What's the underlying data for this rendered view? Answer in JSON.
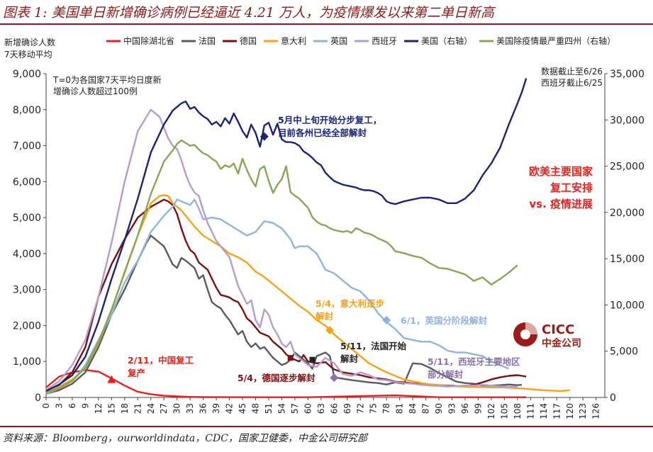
{
  "title": "图表 1:  美国单日新增确诊病例已经逼近 4.21 万人，为疫情爆发以来第二单日新高",
  "source": "资料来源：Bloomberg，ourworldindata，CDC，国家卫健委，中金公司研究部",
  "logo": {
    "text": "CICC",
    "subtext": "中金公司",
    "color": "#9B1B1B"
  },
  "chart_data": {
    "type": "line",
    "ylabel_left": [
      "新增确诊人数",
      "7天移动平均"
    ],
    "ylim_left": [
      0,
      9000
    ],
    "ylim_right": [
      0,
      35000
    ],
    "yticks_left": [
      "0",
      "1,000",
      "2,000",
      "3,000",
      "4,000",
      "5,000",
      "6,000",
      "7,000",
      "8,000",
      "9,000"
    ],
    "yticks_right": [
      "0",
      "5,000",
      "10,000",
      "15,000",
      "20,000",
      "25,000",
      "30,000",
      "35,000"
    ],
    "xticks": [
      0,
      3,
      6,
      9,
      12,
      15,
      18,
      21,
      24,
      27,
      30,
      33,
      36,
      39,
      42,
      45,
      48,
      51,
      54,
      57,
      60,
      63,
      66,
      69,
      72,
      75,
      78,
      81,
      84,
      87,
      90,
      93,
      96,
      99,
      102,
      105,
      108,
      111,
      114,
      117,
      120,
      123,
      126
    ],
    "xlim": [
      0,
      128
    ],
    "note_top_left": [
      "T=0为各国家7天平均日度新",
      "增确诊人数超过100例"
    ],
    "note_top_right": [
      "数据截止至6/26",
      "西班牙截止6/25"
    ],
    "side_note": [
      "欧美主要国家",
      "复工安排",
      "vs. 疫情进展"
    ],
    "series": [
      {
        "name": "中国除湖北省",
        "color": "#E8201C",
        "axis": "left",
        "x": [
          0,
          3,
          6,
          9,
          12,
          15,
          18,
          21,
          24,
          27,
          30,
          33,
          36,
          40,
          60,
          80,
          90,
          110
        ],
        "y": [
          280,
          580,
          700,
          760,
          720,
          530,
          330,
          160,
          90,
          50,
          30,
          15,
          10,
          8,
          6,
          60,
          5,
          5
        ]
      },
      {
        "name": "法国",
        "color": "#5A5A5A",
        "axis": "left",
        "x": [
          0,
          3,
          6,
          9,
          12,
          15,
          18,
          21,
          23,
          24,
          25,
          26,
          27,
          28,
          29,
          30,
          31,
          32,
          33,
          34,
          35,
          36,
          37,
          38,
          39,
          40,
          41,
          42,
          43,
          44,
          45,
          46,
          47,
          48,
          49,
          50,
          51,
          52,
          53,
          54,
          55,
          56,
          57,
          58,
          59,
          60,
          61,
          62,
          63,
          64,
          65,
          66,
          67,
          68,
          70,
          72,
          74,
          76,
          78,
          80,
          82,
          84,
          86,
          88,
          90,
          92,
          94,
          96,
          98,
          100,
          102,
          104,
          106,
          108,
          109
        ],
        "y": [
          100,
          200,
          380,
          700,
          1400,
          2300,
          3000,
          3800,
          4300,
          4500,
          4400,
          4300,
          4200,
          3950,
          3700,
          3600,
          3880,
          3800,
          3700,
          3600,
          3300,
          3400,
          3000,
          2650,
          2550,
          2480,
          2300,
          2150,
          1950,
          1750,
          1850,
          1550,
          1400,
          1500,
          1350,
          1400,
          1250,
          1100,
          1000,
          900,
          950,
          1050,
          1250,
          1150,
          1050,
          950,
          800,
          1150,
          1200,
          1250,
          1150,
          580,
          540,
          520,
          480,
          450,
          420,
          400,
          360,
          420,
          380,
          950,
          930,
          820,
          680,
          560,
          440,
          400,
          380,
          330,
          330,
          340,
          360,
          340,
          350
        ]
      },
      {
        "name": "德国",
        "color": "#7B0F12",
        "axis": "left",
        "x": [
          0,
          3,
          6,
          9,
          12,
          15,
          18,
          21,
          24,
          27,
          28,
          29,
          30,
          31,
          32,
          33,
          34,
          35,
          36,
          37,
          38,
          39,
          40,
          41,
          42,
          43,
          44,
          45,
          46,
          47,
          48,
          49,
          50,
          51,
          52,
          53,
          54,
          55,
          56,
          57,
          58,
          59,
          60,
          62,
          64,
          66,
          68,
          70,
          72,
          74,
          76,
          78,
          80,
          82,
          84,
          86,
          88,
          90,
          92,
          94,
          96,
          98,
          100,
          102,
          104,
          106,
          108,
          110
        ],
        "y": [
          150,
          350,
          700,
          1400,
          2800,
          3700,
          4400,
          5000,
          5300,
          5500,
          5450,
          5350,
          5100,
          4700,
          4350,
          4100,
          4000,
          3750,
          3650,
          3550,
          3300,
          3050,
          2850,
          2820,
          2780,
          2700,
          2650,
          2450,
          2200,
          2100,
          1950,
          1800,
          1750,
          1700,
          1550,
          1450,
          1350,
          1200,
          1100,
          1050,
          1000,
          1180,
          1000,
          950,
          980,
          780,
          700,
          660,
          620,
          560,
          530,
          500,
          440,
          420,
          390,
          370,
          360,
          340,
          330,
          320,
          310,
          350,
          420,
          500,
          560,
          600,
          620,
          580
        ]
      },
      {
        "name": "意大利",
        "color": "#F5A21B",
        "axis": "left",
        "x": [
          0,
          3,
          6,
          9,
          12,
          15,
          18,
          21,
          24,
          26,
          27,
          28,
          29,
          30,
          31,
          32,
          34,
          36,
          38,
          40,
          42,
          44,
          46,
          48,
          50,
          52,
          54,
          56,
          58,
          60,
          62,
          64,
          66,
          68,
          70,
          72,
          74,
          76,
          78,
          80,
          82,
          84,
          86,
          88,
          90,
          92,
          94,
          96,
          98,
          100,
          102,
          104,
          106,
          108,
          110,
          112,
          114,
          116,
          118,
          120
        ],
        "y": [
          150,
          300,
          500,
          800,
          1500,
          2400,
          3500,
          4500,
          5400,
          5600,
          5620,
          5600,
          5400,
          5300,
          5200,
          5050,
          4750,
          4500,
          4350,
          4200,
          4000,
          3900,
          3750,
          3500,
          3350,
          3150,
          2950,
          2750,
          2550,
          2380,
          2150,
          2000,
          1750,
          1550,
          1350,
          1150,
          950,
          820,
          700,
          600,
          500,
          450,
          400,
          360,
          340,
          320,
          310,
          300,
          290,
          290,
          280,
          280,
          270,
          260,
          240,
          220,
          200,
          190,
          180,
          200
        ]
      },
      {
        "name": "英国",
        "color": "#8FB3DD",
        "axis": "left",
        "x": [
          0,
          3,
          6,
          9,
          12,
          15,
          18,
          21,
          24,
          27,
          29,
          30,
          31,
          32,
          33,
          34,
          35,
          36,
          38,
          40,
          42,
          44,
          46,
          48,
          50,
          52,
          54,
          56,
          57,
          58,
          60,
          62,
          64,
          66,
          68,
          70,
          72,
          74,
          76,
          78,
          80,
          82,
          84,
          86,
          88,
          90,
          92,
          94,
          96,
          98,
          100,
          102,
          104,
          106
        ],
        "y": [
          100,
          250,
          450,
          900,
          1600,
          2300,
          3200,
          3800,
          4600,
          5050,
          5300,
          5500,
          5450,
          5400,
          5350,
          5500,
          5250,
          4950,
          5000,
          4950,
          4800,
          4650,
          4500,
          4600,
          4900,
          4850,
          4700,
          4400,
          4150,
          4200,
          4200,
          4000,
          3550,
          3450,
          3250,
          3050,
          2950,
          2700,
          2350,
          2100,
          1900,
          1650,
          1600,
          1550,
          1550,
          1450,
          1300,
          1250,
          1250,
          1200,
          1150,
          1000,
          900,
          800
        ]
      },
      {
        "name": "西班牙",
        "color": "#B59CCC",
        "axis": "left",
        "x": [
          0,
          3,
          6,
          9,
          12,
          15,
          18,
          21,
          24,
          25,
          26,
          27,
          28,
          29,
          30,
          31,
          32,
          33,
          34,
          35,
          36,
          37,
          38,
          39,
          40,
          41,
          42,
          43,
          44,
          45,
          46,
          47,
          48,
          49,
          50,
          51,
          52,
          53,
          54,
          55,
          56,
          57,
          58,
          60,
          62,
          64,
          66,
          68,
          70,
          72,
          74,
          76,
          78,
          80,
          82,
          84,
          86,
          88,
          90,
          92,
          94,
          96,
          98,
          100,
          102,
          104,
          106,
          108
        ],
        "y": [
          200,
          450,
          900,
          1600,
          2800,
          4300,
          6000,
          7400,
          8000,
          7900,
          7800,
          7500,
          7200,
          7000,
          6900,
          6600,
          6200,
          5900,
          5700,
          5600,
          5200,
          4850,
          4600,
          4350,
          4200,
          4050,
          3900,
          3500,
          3100,
          2850,
          2600,
          2700,
          2150,
          1950,
          2450,
          2300,
          1950,
          1750,
          1500,
          1400,
          1550,
          1200,
          1100,
          900,
          850,
          1100,
          950,
          650,
          600,
          700,
          620,
          500,
          480,
          430,
          400,
          380,
          350,
          330,
          320,
          300,
          320,
          330,
          330,
          350,
          330,
          310,
          300,
          300
        ]
      },
      {
        "name": "美国（右轴）",
        "color": "#1A2376",
        "axis": "right",
        "x": [
          0,
          3,
          6,
          9,
          12,
          15,
          18,
          21,
          24,
          27,
          29,
          31,
          32,
          33,
          34,
          35,
          36,
          37,
          38,
          39,
          40,
          41,
          42,
          43,
          44,
          45,
          46,
          47,
          48,
          49,
          50,
          51,
          52,
          53,
          54,
          55,
          56,
          57,
          58,
          59,
          60,
          61,
          62,
          63,
          64,
          65,
          66,
          67,
          68,
          69,
          70,
          71,
          72,
          73,
          74,
          75,
          76,
          77,
          78,
          79,
          80,
          82,
          84,
          86,
          88,
          90,
          92,
          94,
          96,
          98,
          100,
          102,
          104,
          106,
          108,
          109,
          110
        ],
        "y": [
          700,
          1400,
          2400,
          4400,
          8200,
          12800,
          17000,
          21500,
          26500,
          29500,
          31000,
          31800,
          32000,
          31200,
          31400,
          30800,
          30400,
          30100,
          29500,
          29800,
          29300,
          30200,
          29600,
          30700,
          29800,
          28800,
          28100,
          29500,
          28600,
          27100,
          29400,
          29700,
          28400,
          29600,
          27900,
          27600,
          27600,
          27500,
          27200,
          26600,
          26300,
          25900,
          25400,
          25100,
          24300,
          23800,
          23400,
          23200,
          23000,
          22900,
          22800,
          22700,
          22500,
          22400,
          22400,
          22300,
          22100,
          21800,
          21200,
          21000,
          20900,
          21200,
          21400,
          21600,
          21600,
          21400,
          21000,
          21000,
          21500,
          22400,
          24000,
          25300,
          27000,
          29500,
          31800,
          33000,
          34500
        ]
      },
      {
        "name": "美国除疫情最严重四州（右轴）",
        "color": "#86A656",
        "axis": "right",
        "x": [
          0,
          3,
          6,
          9,
          12,
          15,
          18,
          21,
          24,
          27,
          29,
          30,
          31,
          32,
          33,
          34,
          35,
          36,
          37,
          38,
          39,
          40,
          41,
          42,
          43,
          44,
          45,
          46,
          47,
          48,
          49,
          50,
          51,
          52,
          53,
          54,
          55,
          56,
          57,
          58,
          59,
          60,
          61,
          62,
          63,
          64,
          65,
          66,
          67,
          68,
          69,
          70,
          71,
          72,
          73,
          74,
          75,
          76,
          77,
          78,
          79,
          80,
          82,
          84,
          86,
          88,
          90,
          92,
          94,
          96,
          98,
          100,
          102,
          104,
          106,
          108
        ],
        "y": [
          500,
          1000,
          1800,
          3200,
          6000,
          9500,
          13500,
          17500,
          22000,
          25500,
          26700,
          27400,
          27800,
          27500,
          27200,
          27300,
          26800,
          26400,
          26200,
          25800,
          25500,
          24700,
          25100,
          24900,
          25300,
          24200,
          25800,
          24600,
          23600,
          22800,
          24700,
          25000,
          23400,
          22100,
          23000,
          23600,
          25000,
          22200,
          21800,
          21500,
          21000,
          20500,
          19500,
          19000,
          18700,
          18600,
          18300,
          18100,
          18000,
          17900,
          18000,
          17800,
          18300,
          18100,
          17800,
          17700,
          17500,
          17200,
          17000,
          16800,
          16400,
          15800,
          15600,
          15300,
          15100,
          14500,
          14000,
          13900,
          13600,
          13300,
          12600,
          13000,
          12200,
          12800,
          13500,
          14300
        ]
      }
    ],
    "annotations": [
      {
        "text": [
          "2/11，中国复工",
          "复产"
        ],
        "color": "#E8201C",
        "marker": "triangle",
        "marker_x": 15,
        "marker_y": 500,
        "marker_axis": "left"
      },
      {
        "text": [
          "5/4，德国逐步解封"
        ],
        "color": "#7B0F12",
        "marker": "square",
        "marker_x": 56,
        "marker_y": 1100,
        "marker_axis": "left"
      },
      {
        "text": [
          "5/11，法国开始",
          "解封"
        ],
        "color": "#222222",
        "marker": "square",
        "marker_x": 61,
        "marker_y": 1050,
        "marker_axis": "left"
      },
      {
        "text": [
          "5/4，意大利逐步",
          "解封"
        ],
        "color": "#F5A21B",
        "marker": "diamond",
        "marker_x": 65,
        "marker_y": 1870,
        "marker_axis": "left"
      },
      {
        "text": [
          "6/1，英国分阶段解封"
        ],
        "color": "#8FB3DD",
        "marker": "diamond",
        "marker_x": 78,
        "marker_y": 2150,
        "marker_axis": "left"
      },
      {
        "text": [
          "5/11，西班牙主要地区",
          "部分解封"
        ],
        "color": "#8C6FAE",
        "marker": "diamond",
        "marker_x": 66,
        "marker_y": 550,
        "marker_axis": "left"
      },
      {
        "text": [
          "5月中上旬开始分步复工，",
          "目前各州已经全部解封"
        ],
        "color": "#1A2376",
        "marker": "diamond",
        "marker_x": 50,
        "marker_y": 28200,
        "marker_axis": "right"
      }
    ]
  }
}
